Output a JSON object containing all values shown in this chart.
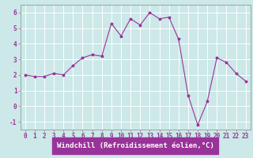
{
  "x": [
    0,
    1,
    2,
    3,
    4,
    5,
    6,
    7,
    8,
    9,
    10,
    11,
    12,
    13,
    14,
    15,
    16,
    17,
    18,
    19,
    20,
    21,
    22,
    23
  ],
  "y": [
    2.0,
    1.9,
    1.9,
    2.1,
    2.0,
    2.6,
    3.1,
    3.3,
    3.2,
    5.3,
    4.5,
    5.6,
    5.2,
    6.0,
    5.6,
    5.7,
    4.3,
    0.7,
    -1.2,
    0.3,
    3.1,
    2.8,
    2.1,
    1.6
  ],
  "line_color": "#993399",
  "marker": "*",
  "marker_size": 2.5,
  "xlabel": "Windchill (Refroidissement éolien,°C)",
  "xlim": [
    -0.5,
    23.5
  ],
  "ylim": [
    -1.5,
    6.5
  ],
  "yticks": [
    -1,
    0,
    1,
    2,
    3,
    4,
    5,
    6
  ],
  "xticks": [
    0,
    1,
    2,
    3,
    4,
    5,
    6,
    7,
    8,
    9,
    10,
    11,
    12,
    13,
    14,
    15,
    16,
    17,
    18,
    19,
    20,
    21,
    22,
    23
  ],
  "bg_color": "#cce8e8",
  "grid_color": "#ffffff",
  "tick_label_fontsize": 5.5,
  "xlabel_fontsize": 6.5,
  "line_width": 0.8,
  "xlabel_bg": "#993399",
  "xlabel_fg": "#ffffff"
}
